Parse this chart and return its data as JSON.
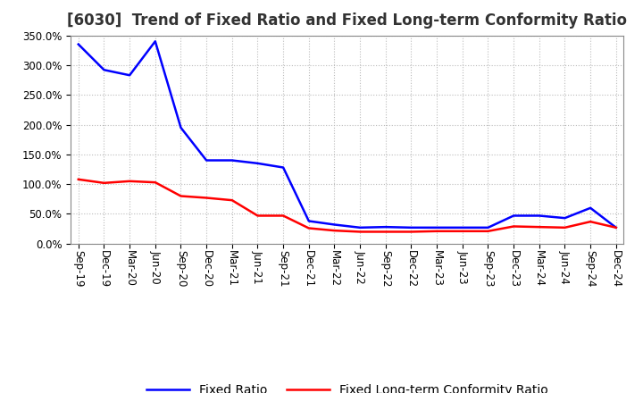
{
  "title": "[6030]  Trend of Fixed Ratio and Fixed Long-term Conformity Ratio",
  "x_labels": [
    "Sep-19",
    "Dec-19",
    "Mar-20",
    "Jun-20",
    "Sep-20",
    "Dec-20",
    "Mar-21",
    "Jun-21",
    "Sep-21",
    "Dec-21",
    "Mar-22",
    "Jun-22",
    "Sep-22",
    "Dec-22",
    "Mar-23",
    "Jun-23",
    "Sep-23",
    "Dec-23",
    "Mar-24",
    "Jun-24",
    "Sep-24",
    "Dec-24"
  ],
  "fixed_ratio": [
    335,
    292,
    283,
    340,
    195,
    140,
    140,
    135,
    128,
    38,
    32,
    27,
    28,
    27,
    27,
    27,
    27,
    47,
    47,
    43,
    60,
    27
  ],
  "fixed_lt_ratio": [
    108,
    102,
    105,
    103,
    80,
    77,
    73,
    47,
    47,
    26,
    22,
    20,
    20,
    20,
    21,
    21,
    21,
    29,
    28,
    27,
    37,
    27
  ],
  "ylim": [
    0,
    350
  ],
  "yticks": [
    0,
    50,
    100,
    150,
    200,
    250,
    300,
    350
  ],
  "line_color_blue": "#0000FF",
  "line_color_red": "#FF0000",
  "background_color": "#FFFFFF",
  "grid_color": "#BBBBBB",
  "legend_fixed_ratio": "Fixed Ratio",
  "legend_fixed_lt_ratio": "Fixed Long-term Conformity Ratio",
  "title_fontsize": 12,
  "axis_fontsize": 8.5,
  "legend_fontsize": 10,
  "line_width": 1.8
}
